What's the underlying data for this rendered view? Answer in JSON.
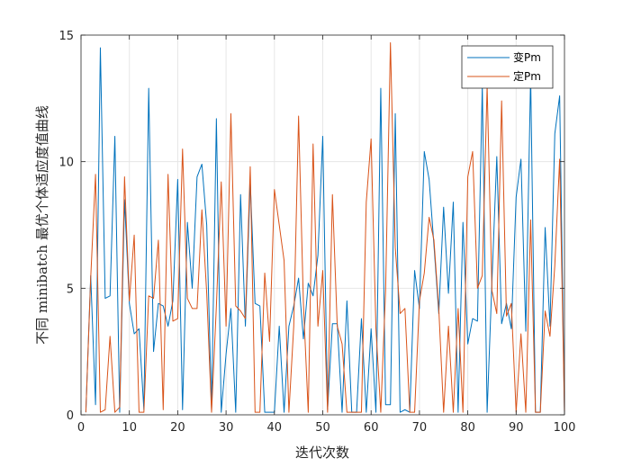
{
  "chart_data": {
    "type": "line",
    "title": "",
    "xlabel": "迭代次数",
    "ylabel": "不同 minibatch 最优个体适应度值曲线",
    "xlim": [
      0,
      100
    ],
    "ylim": [
      0,
      15
    ],
    "xticks": [
      0,
      10,
      20,
      30,
      40,
      50,
      60,
      70,
      80,
      90,
      100
    ],
    "yticks": [
      0,
      5,
      10,
      15
    ],
    "grid": true,
    "legend_position": "top-right",
    "x": [
      1,
      2,
      3,
      4,
      5,
      6,
      7,
      8,
      9,
      10,
      11,
      12,
      13,
      14,
      15,
      16,
      17,
      18,
      19,
      20,
      21,
      22,
      23,
      24,
      25,
      26,
      27,
      28,
      29,
      30,
      31,
      32,
      33,
      34,
      35,
      36,
      37,
      38,
      39,
      40,
      41,
      42,
      43,
      44,
      45,
      46,
      47,
      48,
      49,
      50,
      51,
      52,
      53,
      54,
      55,
      56,
      57,
      58,
      59,
      60,
      61,
      62,
      63,
      64,
      65,
      66,
      67,
      68,
      69,
      70,
      71,
      72,
      73,
      74,
      75,
      76,
      77,
      78,
      79,
      80,
      81,
      82,
      83,
      84,
      85,
      86,
      87,
      88,
      89,
      90,
      91,
      92,
      93,
      94,
      95,
      96,
      97,
      98,
      99,
      100
    ],
    "series": [
      {
        "name": "变Pm",
        "color": "#0072BD",
        "values": [
          0.1,
          5.5,
          0.4,
          14.5,
          4.6,
          4.7,
          11.0,
          0.1,
          8.5,
          4.4,
          3.2,
          3.4,
          0.2,
          12.9,
          2.5,
          4.4,
          4.3,
          3.5,
          4.5,
          9.3,
          0.2,
          7.6,
          5.0,
          9.4,
          9.9,
          7.5,
          0.2,
          11.7,
          0.1,
          2.4,
          4.2,
          0.1,
          8.7,
          3.5,
          9.2,
          4.4,
          4.3,
          0.1,
          0.1,
          0.1,
          3.5,
          0.1,
          3.5,
          4.3,
          5.4,
          3.0,
          5.2,
          4.7,
          6.3,
          11.0,
          0.2,
          3.6,
          3.6,
          0.1,
          4.5,
          0.1,
          0.1,
          3.8,
          0.1,
          3.4,
          0.1,
          12.9,
          0.4,
          0.4,
          11.9,
          0.1,
          0.2,
          0.1,
          5.7,
          4.2,
          10.4,
          9.3,
          6.7,
          4.0,
          8.2,
          4.8,
          8.4,
          0.1,
          7.6,
          2.8,
          3.8,
          3.7,
          13.0,
          0.1,
          5.3,
          10.2,
          3.6,
          4.4,
          3.4,
          8.6,
          10.1,
          3.3,
          13.4,
          0.1,
          0.1,
          7.4,
          3.5,
          11.1,
          12.6,
          0.1
        ],
        "x": [
          1,
          2,
          3,
          4,
          5,
          6,
          7,
          8,
          9,
          10,
          11,
          12,
          13,
          14,
          15,
          16,
          17,
          18,
          19,
          20,
          21,
          22,
          23,
          24,
          25,
          26,
          27,
          28,
          29,
          30,
          31,
          32,
          33,
          34,
          35,
          36,
          37,
          38,
          39,
          40,
          41,
          42,
          43,
          44,
          45,
          46,
          47,
          48,
          49,
          50,
          51,
          52,
          53,
          54,
          55,
          56,
          57,
          58,
          59,
          60,
          61,
          62,
          63,
          64,
          65,
          66,
          67,
          68,
          69,
          70,
          71,
          72,
          73,
          74,
          75,
          76,
          77,
          78,
          79,
          80,
          81,
          82,
          83,
          84,
          85,
          86,
          87,
          88,
          89,
          90,
          91,
          92,
          93,
          94,
          95,
          96,
          97,
          98,
          99,
          100
        ]
      },
      {
        "name": "定Pm",
        "color": "#D95319",
        "values": [
          0.1,
          5.4,
          9.5,
          0.1,
          0.2,
          3.1,
          0.1,
          0.3,
          9.4,
          4.5,
          7.1,
          0.1,
          0.1,
          4.7,
          4.6,
          6.9,
          0.2,
          9.5,
          3.7,
          3.8,
          10.5,
          4.6,
          4.2,
          4.2,
          8.1,
          4.8,
          0.1,
          4.3,
          9.2,
          3.5,
          11.9,
          4.3,
          4.1,
          3.8,
          9.8,
          0.1,
          0.1,
          5.6,
          2.9,
          8.9,
          7.5,
          6.1,
          0.1,
          3.5,
          11.8,
          4.4,
          0.1,
          10.7,
          3.5,
          5.7,
          0.1,
          8.7,
          3.5,
          2.8,
          0.1,
          0.1,
          0.1,
          0.1,
          8.4,
          10.9,
          3.4,
          0.1,
          4.9,
          14.7,
          6.6,
          4.0,
          4.2,
          0.1,
          0.1,
          4.5,
          5.6,
          7.8,
          6.9,
          4.2,
          0.1,
          3.5,
          0.1,
          4.2,
          0.1,
          9.4,
          10.4,
          5.0,
          5.5,
          13.0,
          4.9,
          4.0,
          12.4,
          3.9,
          4.4,
          0.1,
          3.2,
          0.1,
          7.7,
          0.1,
          0.1,
          4.1,
          3.1,
          5.9,
          10.1,
          0.1
        ],
        "x": [
          1,
          2,
          3,
          4,
          5,
          6,
          7,
          8,
          9,
          10,
          11,
          12,
          13,
          14,
          15,
          16,
          17,
          18,
          19,
          20,
          21,
          22,
          23,
          24,
          25,
          26,
          27,
          28,
          29,
          30,
          31,
          32,
          33,
          34,
          35,
          36,
          37,
          38,
          39,
          40,
          41,
          42,
          43,
          44,
          45,
          46,
          47,
          48,
          49,
          50,
          51,
          52,
          53,
          54,
          55,
          56,
          57,
          58,
          59,
          60,
          61,
          62,
          63,
          64,
          65,
          66,
          67,
          68,
          69,
          70,
          71,
          72,
          73,
          74,
          75,
          76,
          77,
          78,
          79,
          80,
          81,
          82,
          83,
          84,
          85,
          86,
          87,
          88,
          89,
          90,
          91,
          92,
          93,
          94,
          95,
          96,
          97,
          98,
          99,
          100
        ]
      }
    ]
  }
}
